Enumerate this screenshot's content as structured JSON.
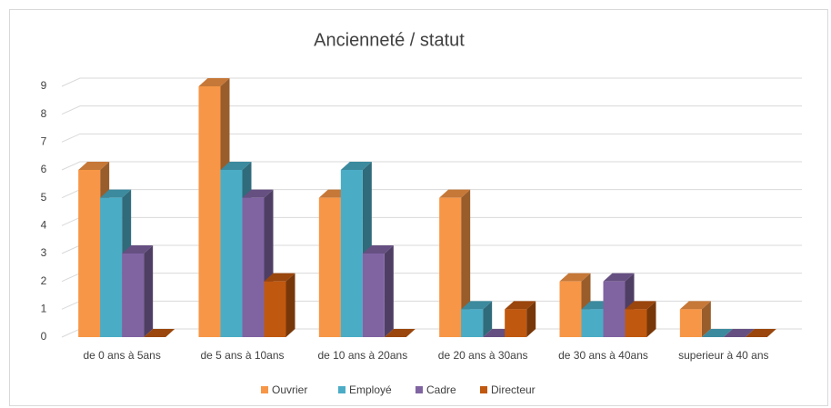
{
  "chart_data": {
    "type": "bar3d",
    "title": "Ancienneté / statut",
    "categories": [
      "de 0 ans à 5ans",
      "de 5 ans à 10ans",
      "de 10 ans à 20ans",
      "de 20 ans à 30ans",
      "de 30 ans à 40ans",
      "superieur à 40 ans"
    ],
    "series": [
      {
        "name": "Ouvrier",
        "color": "#f79646",
        "values": [
          6,
          9,
          5,
          5,
          2,
          1
        ]
      },
      {
        "name": "Employé",
        "color": "#4bacc6",
        "values": [
          5,
          6,
          6,
          1,
          1,
          0
        ]
      },
      {
        "name": "Cadre",
        "color": "#8064a2",
        "values": [
          3,
          5,
          3,
          0,
          2,
          0
        ]
      },
      {
        "name": "Directeur",
        "color": "#c0580f",
        "values": [
          0,
          2,
          0,
          1,
          1,
          0
        ]
      }
    ],
    "ylim": [
      0,
      9
    ],
    "yticks": [
      0,
      1,
      2,
      3,
      4,
      5,
      6,
      7,
      8,
      9
    ],
    "grid": true,
    "legend": "bottom"
  }
}
